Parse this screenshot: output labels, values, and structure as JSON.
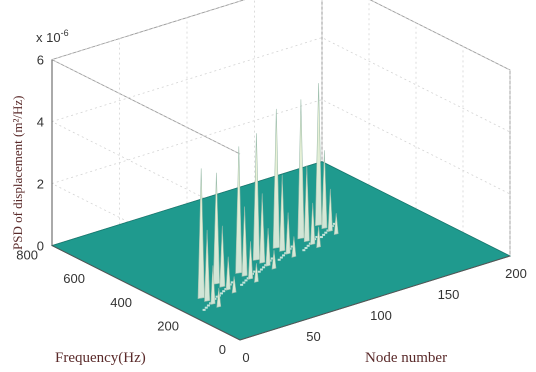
{
  "chart_data": {
    "type": "surface3d",
    "title": "",
    "xlabel": "Node number",
    "ylabel": "Frequency(Hz)",
    "zlabel": "PSD of displacement (m²/Hz)",
    "z_exponent_label": "x 10",
    "z_exponent_power": "-6",
    "xlim": [
      0,
      200
    ],
    "ylim": [
      0,
      800
    ],
    "zlim": [
      0,
      6
    ],
    "x_ticks": [
      0,
      50,
      100,
      150,
      200
    ],
    "y_ticks": [
      0,
      200,
      400,
      600,
      800
    ],
    "z_ticks": [
      0,
      2,
      4,
      6
    ],
    "grid": true,
    "surface_color": "#1f9a8e",
    "peak_color": "#f2f6c8",
    "peaks": [
      {
        "node": 20,
        "frequency": 280,
        "psd": 4.2
      },
      {
        "node": 40,
        "frequency": 330,
        "psd": 3.6
      },
      {
        "node": 60,
        "frequency": 350,
        "psd": 4.1
      },
      {
        "node": 80,
        "frequency": 390,
        "psd": 4.1
      },
      {
        "node": 100,
        "frequency": 420,
        "psd": 4.5
      },
      {
        "node": 120,
        "frequency": 430,
        "psd": 4.5
      },
      {
        "node": 140,
        "frequency": 470,
        "psd": 4.6
      }
    ]
  }
}
